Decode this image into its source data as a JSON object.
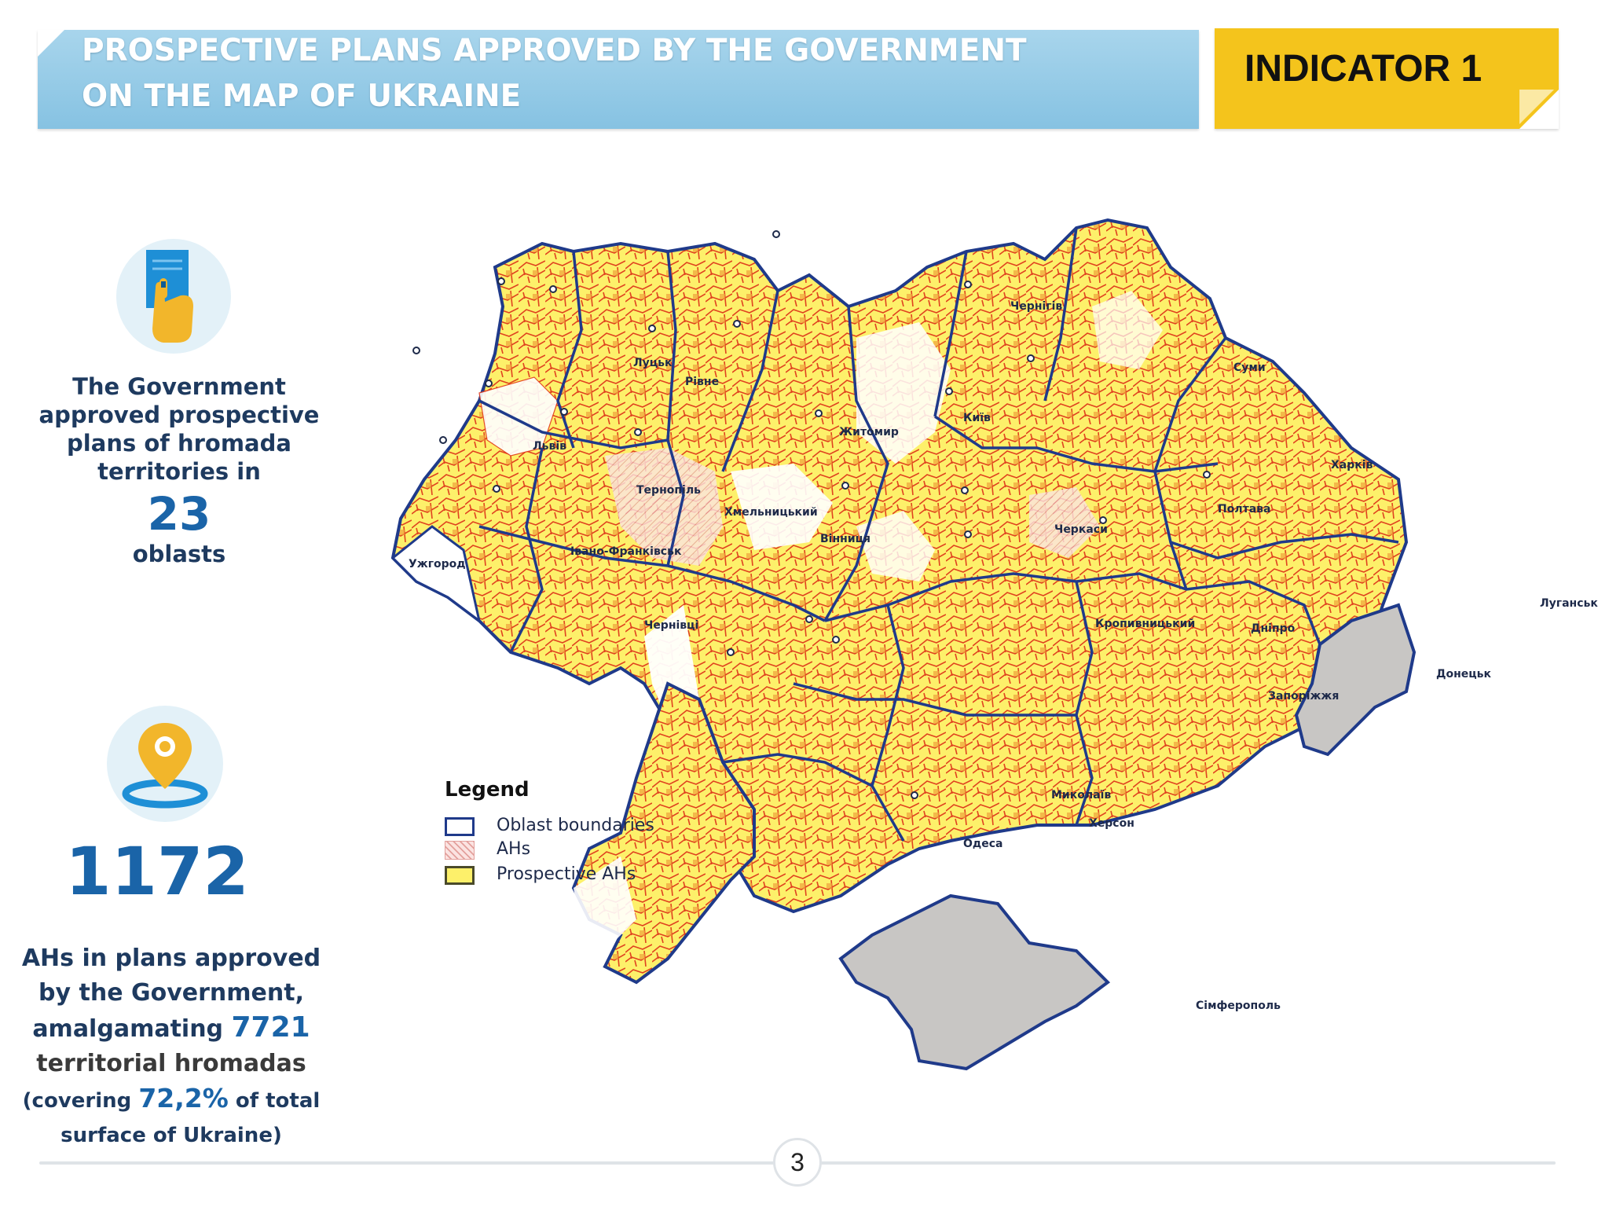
{
  "header": {
    "title_line1": "PROSPECTIVE PLANS APPROVED BY THE GOVERNMENT",
    "title_line2": "ON THE MAP OF UKRAINE",
    "indicator": "INDICATOR 1"
  },
  "left_panel": {
    "doc_icon": "hand-holding-document-icon",
    "gov_text_lines": [
      "The Government",
      "approved prospective",
      "plans of hromada",
      "territories in"
    ],
    "oblast_count": "23",
    "oblast_label": "oblasts",
    "pin_icon": "location-pin-icon",
    "ah_count": "1172",
    "ah_line1": "AHs in plans approved",
    "ah_line2": "by the Government,",
    "ah_line3_prefix": "amalgamating",
    "hromada_count": "7721",
    "ah_line4": "territorial hromadas",
    "ah_line5_prefix": "(covering",
    "coverage_pct": "72,2%",
    "ah_line5_suffix": "of total",
    "ah_line6": "surface of Ukraine)"
  },
  "map": {
    "cities": [
      "Луцьк",
      "Рівне",
      "Житомир",
      "Київ",
      "Чернігів",
      "Суми",
      "Харків",
      "Полтава",
      "Черкаси",
      "Львів",
      "Тернопіль",
      "Хмельницький",
      "Вінниця",
      "Івано-Франківськ",
      "Ужгород",
      "Чернівці",
      "Кропивницький",
      "Дніпро",
      "Луганськ",
      "Донецьк",
      "Запоріжжя",
      "Миколаїв",
      "Херсон",
      "Одеса",
      "Сімферополь"
    ],
    "colors": {
      "oblast_boundary": "#1f3a8a",
      "ah_hatch": "#e8a0a0",
      "prospective_fill": "#fdf06a",
      "prospective_border": "#e33b1f",
      "occupied": "#c8c6c4"
    }
  },
  "legend": {
    "title": "Legend",
    "items": [
      {
        "label": "Oblast boundaries"
      },
      {
        "label": "AHs"
      },
      {
        "label": "Prospective AHs"
      }
    ]
  },
  "footer": {
    "page_number": "3"
  }
}
